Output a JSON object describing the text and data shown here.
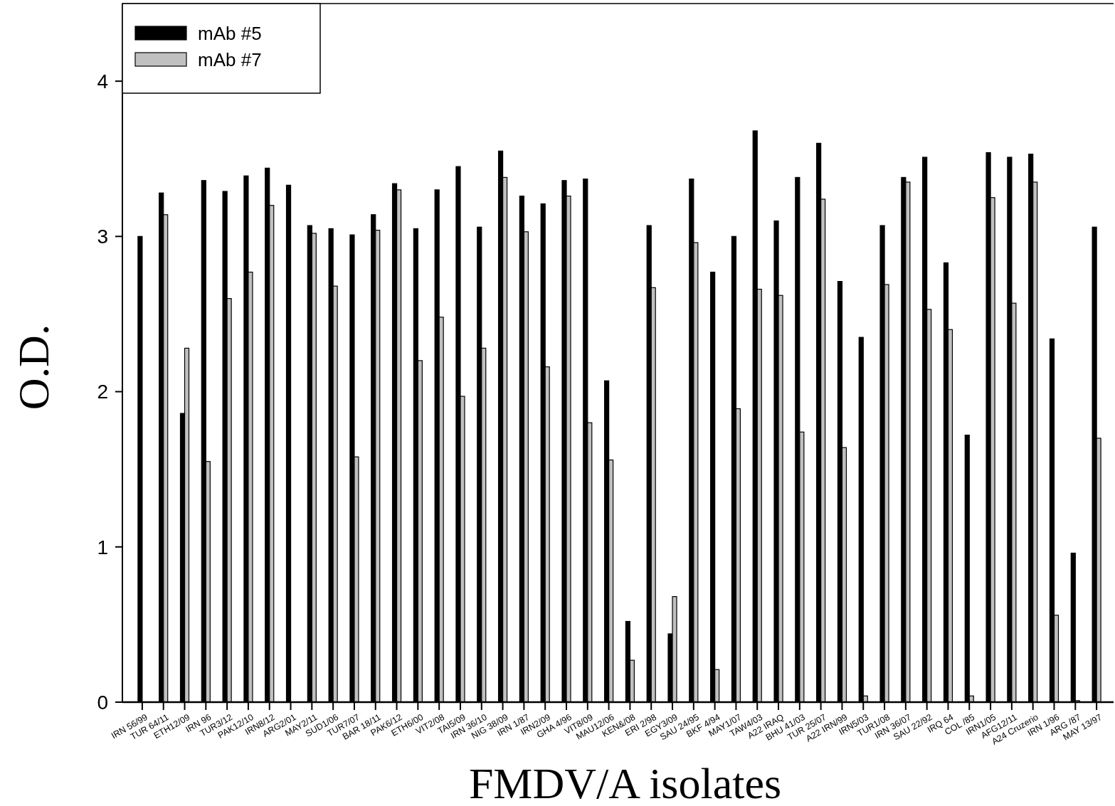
{
  "chart_data": {
    "type": "bar",
    "xlabel": "FMDV/A isolates",
    "ylabel": "O.D.",
    "categories": [
      "IRN 56/99",
      "TUR 64/11",
      "ETH12/09",
      "IRN 96",
      "TUR3/12",
      "PAK12/10",
      "IRN8/12",
      "ARG2/01",
      "MAY2/11",
      "SUD1/06",
      "TUR7/07",
      "BAR 18/11",
      "PAK6/12",
      "ETH6/00",
      "VIT2/08",
      "TAI5/09",
      "IRN 36/10",
      "NIG 38/09",
      "IRN 1/87",
      "IRN2/09",
      "GHA 4/96",
      "VIT8/09",
      "MAU12/06",
      "KEN&/08",
      "ERI 2/98",
      "EGY3/09",
      "SAU 24/95",
      "BKF 4/94",
      "MAY1/07",
      "TAW4/03",
      "A22 IRAQ",
      "BHU 41/03",
      "TUR 25/07",
      "A22 IRN/99",
      "IRN5/03",
      "TUR1/08",
      "IRN 36/07",
      "SAU 22/92",
      "IRQ 64",
      "COL /85",
      "IRN1/05",
      "AFG12/11",
      "A24 Cruzerio",
      "IRN 1/96",
      "ARG /87",
      "MAY 13/97"
    ],
    "series": [
      {
        "name": "mAb #5",
        "color": "#000000",
        "values": [
          3.0,
          3.28,
          1.86,
          3.36,
          3.29,
          3.39,
          3.44,
          3.33,
          3.07,
          3.05,
          3.01,
          3.14,
          3.34,
          3.05,
          3.3,
          3.45,
          3.06,
          3.55,
          3.26,
          3.21,
          3.36,
          3.37,
          2.07,
          0.52,
          3.07,
          0.44,
          3.37,
          2.77,
          3.0,
          3.68,
          3.1,
          3.38,
          3.6,
          2.71,
          2.35,
          3.07,
          3.38,
          3.51,
          2.83,
          1.72,
          3.54,
          3.51,
          3.53,
          2.34,
          0.96,
          3.06
        ]
      },
      {
        "name": "mAb #7",
        "color": "#c0c0c0",
        "values": [
          null,
          3.14,
          2.28,
          1.55,
          2.6,
          2.77,
          3.2,
          null,
          3.02,
          2.68,
          1.58,
          3.04,
          3.3,
          2.2,
          2.48,
          1.97,
          2.28,
          3.38,
          3.03,
          2.16,
          3.26,
          1.8,
          1.56,
          0.27,
          2.67,
          0.68,
          2.96,
          0.21,
          1.89,
          2.66,
          2.62,
          1.74,
          3.24,
          1.64,
          0.04,
          2.69,
          3.35,
          2.53,
          2.4,
          0.04,
          3.25,
          2.57,
          3.35,
          0.56,
          0.01,
          1.7
        ]
      }
    ],
    "ylim": [
      0,
      4.5
    ],
    "yticks": [
      0,
      1,
      2,
      3,
      4
    ],
    "legend": "top left"
  }
}
